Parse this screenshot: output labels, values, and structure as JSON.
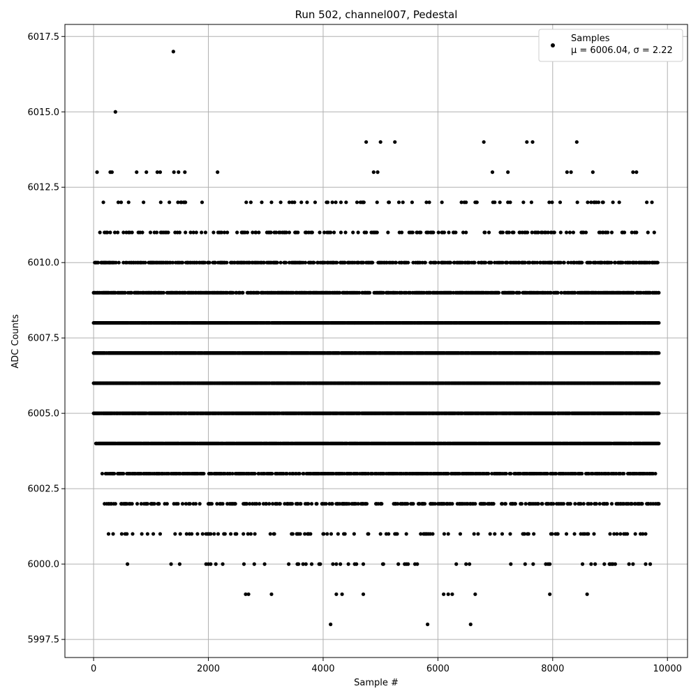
{
  "chart_data": {
    "type": "scatter",
    "title": "Run 502, channel007, Pedestal",
    "xlabel": "Sample #",
    "ylabel": "ADC Counts",
    "xlim": [
      -500,
      10350
    ],
    "ylim": [
      5996.9,
      6017.9
    ],
    "xticks": [
      0,
      2000,
      4000,
      6000,
      8000,
      10000
    ],
    "xtick_labels": [
      "0",
      "2000",
      "4000",
      "6000",
      "8000",
      "10000"
    ],
    "yticks": [
      5997.5,
      6000.0,
      6002.5,
      6005.0,
      6007.5,
      6010.0,
      6012.5,
      6015.0,
      6017.5
    ],
    "ytick_labels": [
      "5997.5",
      "6000.0",
      "6002.5",
      "6005.0",
      "6007.5",
      "6010.0",
      "6012.5",
      "6015.0",
      "6017.5"
    ],
    "grid": true,
    "legend_position": "top-right",
    "marker_color": "#000000",
    "series": [
      {
        "name": "Samples",
        "legend_line2": "μ = 6006.04, σ = 2.22",
        "mean": 6006.04,
        "std": 2.22,
        "n_samples": 9850,
        "levels": [
          {
            "y": 6004,
            "density": 0.95,
            "x_start": 40
          },
          {
            "y": 6005,
            "density": 0.9,
            "x_start": 0
          },
          {
            "y": 6006,
            "density": 0.95,
            "x_start": 0
          },
          {
            "y": 6007,
            "density": 0.95,
            "x_start": 0
          },
          {
            "y": 6008,
            "density": 0.95,
            "x_start": 0
          },
          {
            "y": 6003,
            "density": 0.55,
            "x_start": 150
          },
          {
            "y": 6009,
            "density": 0.6,
            "x_start": 0
          },
          {
            "y": 6010,
            "density": 0.45,
            "x_start": 0
          },
          {
            "y": 6002,
            "density": 0.3,
            "x_start": 150
          },
          {
            "y": 6011,
            "density": 0.18,
            "x_start": 0
          },
          {
            "y": 6001,
            "density": 0.12,
            "x_start": 0
          },
          {
            "y": 6012,
            "density": 0.06,
            "x_start": 0
          },
          {
            "y": 6000,
            "density": 0.03,
            "x_start": 500
          }
        ],
        "points": [
          {
            "x": 1390,
            "y": 6017
          },
          {
            "x": 380,
            "y": 6015
          },
          {
            "x": 4750,
            "y": 6014
          },
          {
            "x": 5000,
            "y": 6014
          },
          {
            "x": 5250,
            "y": 6014
          },
          {
            "x": 6800,
            "y": 6014
          },
          {
            "x": 7550,
            "y": 6014
          },
          {
            "x": 7650,
            "y": 6014
          },
          {
            "x": 8420,
            "y": 6014
          },
          {
            "x": 60,
            "y": 6013
          },
          {
            "x": 290,
            "y": 6013
          },
          {
            "x": 320,
            "y": 6013
          },
          {
            "x": 750,
            "y": 6013
          },
          {
            "x": 920,
            "y": 6013
          },
          {
            "x": 1110,
            "y": 6013
          },
          {
            "x": 1160,
            "y": 6013
          },
          {
            "x": 1400,
            "y": 6013
          },
          {
            "x": 1480,
            "y": 6013
          },
          {
            "x": 1590,
            "y": 6013
          },
          {
            "x": 2160,
            "y": 6013
          },
          {
            "x": 4880,
            "y": 6013
          },
          {
            "x": 4950,
            "y": 6013
          },
          {
            "x": 6950,
            "y": 6013
          },
          {
            "x": 7220,
            "y": 6013
          },
          {
            "x": 8250,
            "y": 6013
          },
          {
            "x": 8320,
            "y": 6013
          },
          {
            "x": 8700,
            "y": 6013
          },
          {
            "x": 9400,
            "y": 6013
          },
          {
            "x": 9460,
            "y": 6013
          },
          {
            "x": 2700,
            "y": 5999
          },
          {
            "x": 3100,
            "y": 5999
          },
          {
            "x": 4230,
            "y": 5999
          },
          {
            "x": 4330,
            "y": 5999
          },
          {
            "x": 4700,
            "y": 5999
          },
          {
            "x": 6100,
            "y": 5999
          },
          {
            "x": 6180,
            "y": 5999
          },
          {
            "x": 6250,
            "y": 5999
          },
          {
            "x": 6650,
            "y": 5999
          },
          {
            "x": 7950,
            "y": 5999
          },
          {
            "x": 8600,
            "y": 5999
          },
          {
            "x": 2650,
            "y": 5999
          },
          {
            "x": 4130,
            "y": 5998
          },
          {
            "x": 5820,
            "y": 5998
          },
          {
            "x": 6570,
            "y": 5998
          },
          {
            "x": 590,
            "y": 6000
          },
          {
            "x": 1960,
            "y": 6000
          },
          {
            "x": 2250,
            "y": 6000
          },
          {
            "x": 2620,
            "y": 6000
          },
          {
            "x": 2800,
            "y": 6000
          },
          {
            "x": 3550,
            "y": 6000
          },
          {
            "x": 3650,
            "y": 6000
          },
          {
            "x": 3950,
            "y": 6000
          },
          {
            "x": 4300,
            "y": 6000
          },
          {
            "x": 4700,
            "y": 6000
          },
          {
            "x": 5050,
            "y": 6000
          },
          {
            "x": 5450,
            "y": 6000
          },
          {
            "x": 5600,
            "y": 6000
          },
          {
            "x": 6320,
            "y": 6000
          },
          {
            "x": 6550,
            "y": 6000
          },
          {
            "x": 7270,
            "y": 6000
          },
          {
            "x": 7520,
            "y": 6000
          },
          {
            "x": 7880,
            "y": 6000
          },
          {
            "x": 7950,
            "y": 6000
          },
          {
            "x": 9030,
            "y": 6000
          },
          {
            "x": 9330,
            "y": 6000
          },
          {
            "x": 9620,
            "y": 6000
          },
          {
            "x": 9700,
            "y": 6000
          }
        ]
      }
    ]
  }
}
